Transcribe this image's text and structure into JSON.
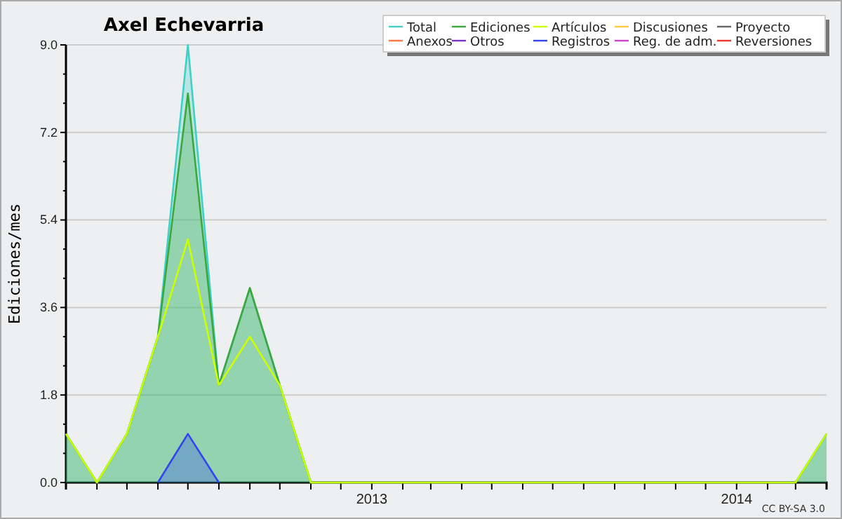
{
  "chart_data": {
    "type": "area",
    "title": "Axel Echevarria",
    "ylabel": "Ediciones/mes",
    "annotations": [
      "CC BY-SA 3.0"
    ],
    "x": [
      "2012-03",
      "2012-04",
      "2012-05",
      "2012-06",
      "2012-07",
      "2012-08",
      "2012-09",
      "2012-10",
      "2012-11",
      "2012-12",
      "2013-01",
      "2013-02",
      "2013-03",
      "2013-04",
      "2013-05",
      "2013-06",
      "2013-07",
      "2013-08",
      "2013-09",
      "2013-10",
      "2013-11",
      "2013-12",
      "2014-01",
      "2014-02",
      "2014-03",
      "2014-04"
    ],
    "xlim": [
      "2012-03",
      "2014-04"
    ],
    "xticks": [
      {
        "value": "2012-03",
        "label": null
      },
      {
        "value": "2012-04",
        "label": null
      },
      {
        "value": "2012-05",
        "label": null
      },
      {
        "value": "2012-06",
        "label": null
      },
      {
        "value": "2012-07",
        "label": null
      },
      {
        "value": "2012-08",
        "label": null
      },
      {
        "value": "2012-09",
        "label": null
      },
      {
        "value": "2012-10",
        "label": null
      },
      {
        "value": "2012-11",
        "label": null
      },
      {
        "value": "2012-12",
        "label": null
      },
      {
        "value": "2013-01",
        "label": "2013"
      },
      {
        "value": "2013-02",
        "label": null
      },
      {
        "value": "2013-03",
        "label": null
      },
      {
        "value": "2013-04",
        "label": null
      },
      {
        "value": "2013-05",
        "label": null
      },
      {
        "value": "2013-06",
        "label": null
      },
      {
        "value": "2013-07",
        "label": null
      },
      {
        "value": "2013-08",
        "label": null
      },
      {
        "value": "2013-09",
        "label": null
      },
      {
        "value": "2013-10",
        "label": null
      },
      {
        "value": "2013-11",
        "label": null
      },
      {
        "value": "2013-12",
        "label": null
      },
      {
        "value": "2014-01",
        "label": "2014"
      },
      {
        "value": "2014-02",
        "label": null
      },
      {
        "value": "2014-03",
        "label": null
      },
      {
        "value": "2014-04",
        "label": null
      }
    ],
    "ylim": [
      0,
      9
    ],
    "yticks": [
      {
        "value": 0,
        "label": "0.0"
      },
      {
        "value": 0.6,
        "label": null
      },
      {
        "value": 1.2,
        "label": null
      },
      {
        "value": 1.8,
        "label": "1.8"
      },
      {
        "value": 2.4,
        "label": null
      },
      {
        "value": 3.0,
        "label": null
      },
      {
        "value": 3.6,
        "label": "3.6"
      },
      {
        "value": 4.2,
        "label": null
      },
      {
        "value": 4.8,
        "label": null
      },
      {
        "value": 5.4,
        "label": "5.4"
      },
      {
        "value": 6.0,
        "label": null
      },
      {
        "value": 6.6,
        "label": null
      },
      {
        "value": 7.2,
        "label": "7.2"
      },
      {
        "value": 7.8,
        "label": null
      },
      {
        "value": 8.4,
        "label": null
      },
      {
        "value": 9,
        "label": "9.0"
      }
    ],
    "grid": "y",
    "legend": "top right",
    "series": [
      {
        "name": "Total",
        "color": "#40d0c8",
        "values": [
          1,
          0,
          1,
          3,
          9,
          2,
          4,
          2,
          0,
          0,
          0,
          0,
          0,
          0,
          0,
          0,
          0,
          0,
          0,
          0,
          0,
          0,
          0,
          0,
          0,
          1
        ]
      },
      {
        "name": "Ediciones",
        "color": "#3aa83a",
        "values": [
          1,
          0,
          1,
          3,
          8,
          2,
          4,
          2,
          0,
          0,
          0,
          0,
          0,
          0,
          0,
          0,
          0,
          0,
          0,
          0,
          0,
          0,
          0,
          0,
          0,
          1
        ]
      },
      {
        "name": "Artículos",
        "type": "line",
        "color": "#ccff00",
        "values": [
          1,
          0,
          1,
          3,
          5,
          2,
          3,
          2,
          0,
          0,
          0,
          0,
          0,
          0,
          0,
          0,
          0,
          0,
          0,
          0,
          0,
          0,
          0,
          0,
          0,
          1
        ]
      },
      {
        "name": "Discusiones",
        "type": "line",
        "color": "#ffcc44",
        "values": [
          null,
          null,
          null,
          null,
          null,
          null,
          null,
          null,
          null,
          null,
          null,
          null,
          null,
          null,
          null,
          null,
          null,
          null,
          null,
          null,
          null,
          null,
          null,
          null,
          null,
          null
        ]
      },
      {
        "name": "Proyecto",
        "type": "line",
        "color": "#666666",
        "values": [
          null,
          null,
          null,
          null,
          null,
          null,
          null,
          null,
          null,
          null,
          null,
          null,
          null,
          null,
          null,
          null,
          null,
          null,
          null,
          null,
          null,
          null,
          null,
          null,
          null,
          null
        ]
      },
      {
        "name": "Anexos",
        "type": "line",
        "color": "#ff7744",
        "values": [
          null,
          null,
          null,
          null,
          null,
          null,
          null,
          null,
          null,
          null,
          null,
          null,
          null,
          null,
          null,
          null,
          null,
          null,
          null,
          null,
          null,
          null,
          null,
          null,
          null,
          null
        ]
      },
      {
        "name": "Otros",
        "type": "line",
        "color": "#7733cc",
        "values": [
          null,
          null,
          null,
          null,
          null,
          null,
          null,
          null,
          null,
          null,
          null,
          null,
          null,
          null,
          null,
          null,
          null,
          null,
          null,
          null,
          null,
          null,
          null,
          null,
          null,
          null
        ]
      },
      {
        "name": "Registros",
        "color": "#3344ee",
        "values": [
          null,
          null,
          null,
          0,
          1,
          0,
          null,
          null,
          null,
          null,
          null,
          null,
          null,
          null,
          null,
          null,
          null,
          null,
          null,
          null,
          null,
          null,
          null,
          null,
          null,
          null
        ]
      },
      {
        "name": "Reg. de adm.",
        "type": "line",
        "color": "#cc44cc",
        "values": [
          null,
          null,
          null,
          null,
          null,
          null,
          null,
          null,
          null,
          null,
          null,
          null,
          null,
          null,
          null,
          null,
          null,
          null,
          null,
          null,
          null,
          null,
          null,
          null,
          null,
          null
        ]
      },
      {
        "name": "Reversiones",
        "type": "line",
        "color": "#ee3333",
        "values": [
          null,
          null,
          null,
          null,
          null,
          null,
          null,
          null,
          null,
          null,
          null,
          null,
          null,
          null,
          null,
          null,
          null,
          null,
          null,
          null,
          null,
          null,
          null,
          null,
          null,
          null
        ]
      }
    ]
  }
}
